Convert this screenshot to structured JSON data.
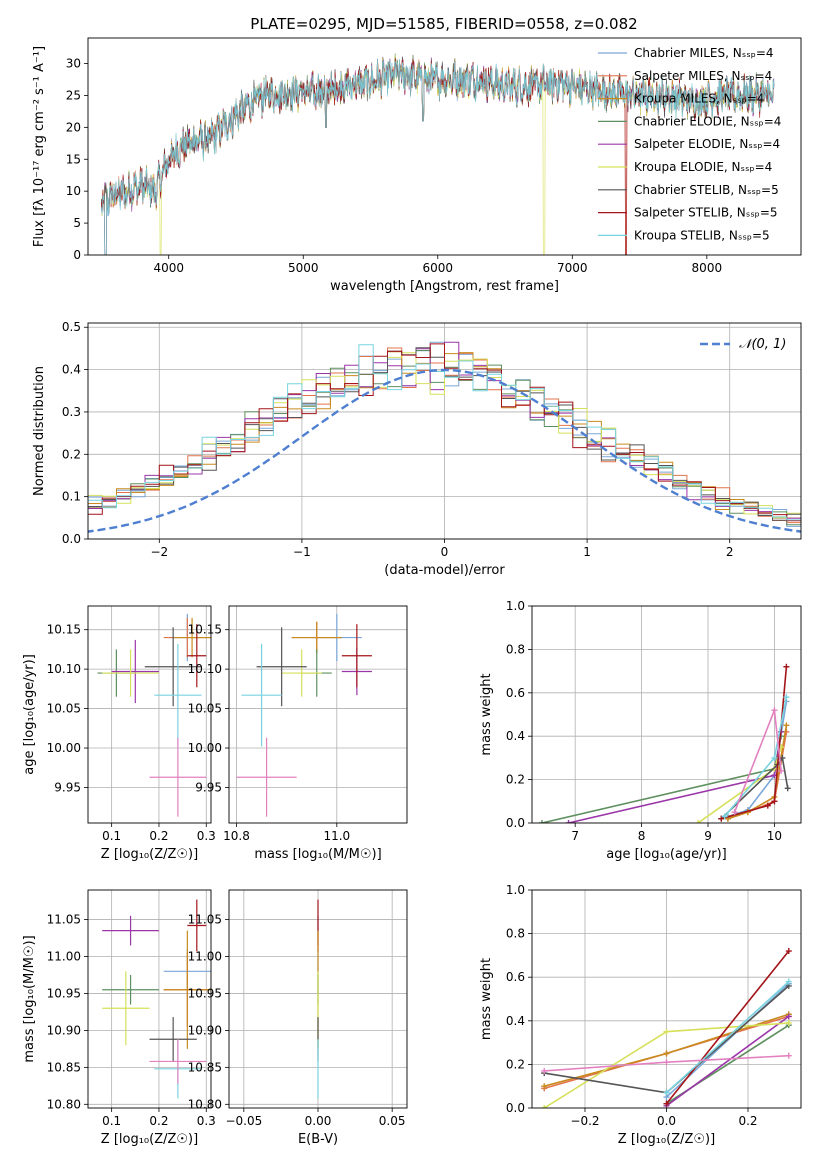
{
  "figure_title": "PLATE=0295, MJD=51585, FIBERID=0558, z=0.082",
  "colors": {
    "Chabrier MILES": "#7aa7d8",
    "Salpeter MILES": "#e2744c",
    "Kroupa MILES": "#c98a1e",
    "Chabrier ELODIE": "#5e8f5e",
    "Salpeter ELODIE": "#9b36a8",
    "Kroupa ELODIE": "#d6e05a",
    "Chabrier STELIB": "#555555",
    "Salpeter STELIB": "#a3151a",
    "Kroupa STELIB": "#78d3e0",
    "normal_curve": "#4f7fd0",
    "pink": "#e381c0"
  },
  "chart_data": [
    {
      "id": "spectrum",
      "type": "line",
      "title": "PLATE=0295, MJD=51585, FIBERID=0558, z=0.082",
      "xlabel": "wavelength [Angstrom, rest frame]",
      "ylabel": "Flux [fλ 10⁻¹⁷ erg cm⁻² s⁻¹ A⁻¹]",
      "xlim": [
        3400,
        8700
      ],
      "ylim": [
        0,
        34
      ],
      "xticks": [
        4000,
        5000,
        6000,
        7000,
        8000
      ],
      "yticks": [
        0,
        5,
        10,
        15,
        20,
        25,
        30
      ],
      "legend_position": "right",
      "legend": [
        "Chabrier MILES, N_SSP=4",
        "Salpeter MILES, N_SSP=4",
        "Kroupa MILES, N_SSP=4",
        "Chabrier ELODIE, N_SSP=4",
        "Salpeter ELODIE, N_SSP=4",
        "Kroupa ELODIE, N_SSP=4",
        "Chabrier STELIB, N_SSP=5",
        "Salpeter STELIB, N_SSP=5",
        "Kroupa STELIB, N_SSP=5"
      ],
      "continuum": {
        "x": [
          3500,
          3600,
          3700,
          3800,
          3900,
          4000,
          4100,
          4200,
          4300,
          4400,
          4500,
          4700,
          4900,
          5100,
          5300,
          5500,
          5700,
          5900,
          6100,
          6300,
          6500,
          6700,
          6900,
          7100,
          7300,
          7500,
          7700,
          7900,
          8100,
          8300,
          8500
        ],
        "y": [
          8,
          9.5,
          10,
          11,
          10,
          15,
          17,
          18,
          18,
          20,
          22,
          25,
          25.5,
          25.5,
          26.5,
          27,
          28.5,
          27.5,
          27.5,
          27.5,
          26.5,
          26.5,
          27,
          26,
          25.5,
          25,
          25,
          24,
          25,
          25,
          25
        ]
      },
      "features": [
        {
          "x": 3530,
          "y": 0
        },
        {
          "x": 3940,
          "y": 0
        },
        {
          "x": 5170,
          "y": 20
        },
        {
          "x": 5890,
          "y": 21
        },
        {
          "x": 6790,
          "y": 0
        },
        {
          "x": 7400,
          "y": 0
        }
      ]
    },
    {
      "id": "residuals",
      "type": "histogram",
      "xlabel": "(data-model)/error",
      "ylabel": "Normed distribution",
      "xlim": [
        -2.5,
        2.5
      ],
      "ylim": [
        0,
        0.51
      ],
      "xticks": [
        -2,
        -1,
        0,
        1,
        2
      ],
      "yticks": [
        0,
        0.1,
        0.2,
        0.3,
        0.4,
        0.5
      ],
      "grid": true,
      "legend_position": "top-right",
      "legend": [
        "𝒩(0, 1)"
      ],
      "bin_width": 0.1,
      "mean_density": [
        0.017,
        0.02,
        0.025,
        0.03,
        0.035,
        0.04,
        0.046,
        0.052,
        0.06,
        0.068,
        0.079,
        0.09,
        0.103,
        0.116,
        0.131,
        0.147,
        0.164,
        0.182,
        0.2,
        0.219,
        0.238,
        0.258,
        0.277,
        0.297,
        0.315,
        0.333,
        0.35,
        0.365,
        0.379,
        0.39,
        0.399,
        0.405,
        0.409,
        0.41,
        0.407,
        0.401,
        0.392,
        0.382,
        0.369,
        0.354,
        0.338,
        0.321,
        0.302,
        0.283,
        0.264,
        0.244,
        0.225,
        0.206,
        0.187,
        0.169,
        0.152,
        0.136,
        0.121,
        0.107,
        0.094,
        0.082,
        0.072,
        0.063,
        0.054,
        0.047,
        0.04,
        0.035,
        0.03,
        0.026,
        0.022,
        0.019,
        0.017,
        0.015,
        0.013,
        0.012
      ]
    },
    {
      "id": "age-vs-Z",
      "type": "errorbar",
      "xlabel": "Z [log₁₀(Z/Z☉)]",
      "ylabel": "age  [log₁₀(age/yr)]",
      "xlim": [
        0.05,
        0.31
      ],
      "ylim": [
        9.905,
        10.18
      ],
      "xticks": [
        0.1,
        0.2,
        0.3
      ],
      "yticks": [
        9.95,
        10.0,
        10.05,
        10.1,
        10.15
      ],
      "points": [
        {
          "series": "Chabrier MILES",
          "x": 0.26,
          "y": 10.14,
          "xerr": 0.04,
          "yerr": 0.03
        },
        {
          "series": "Salpeter MILES",
          "x": 0.26,
          "y": 10.14,
          "xerr": 0.05,
          "yerr": 0.025
        },
        {
          "series": "Kroupa MILES",
          "x": 0.27,
          "y": 10.14,
          "xerr": 0.04,
          "yerr": 0.025
        },
        {
          "series": "Chabrier ELODIE",
          "x": 0.11,
          "y": 10.095,
          "xerr": 0.04,
          "yerr": 0.03
        },
        {
          "series": "Salpeter ELODIE",
          "x": 0.15,
          "y": 10.097,
          "xerr": 0.05,
          "yerr": 0.04
        },
        {
          "series": "Kroupa ELODIE",
          "x": 0.14,
          "y": 10.095,
          "xerr": 0.06,
          "yerr": 0.03
        },
        {
          "series": "Chabrier STELIB",
          "x": 0.23,
          "y": 10.103,
          "xerr": 0.06,
          "yerr": 0.05
        },
        {
          "series": "Salpeter STELIB",
          "x": 0.28,
          "y": 10.117,
          "xerr": 0.02,
          "yerr": 0.04
        },
        {
          "series": "Kroupa STELIB",
          "x": 0.24,
          "y": 10.067,
          "xerr": 0.05,
          "yerr": 0.065
        },
        {
          "series": "pink",
          "x": 0.24,
          "y": 9.963,
          "xerr": 0.06,
          "yerr": 0.05
        }
      ]
    },
    {
      "id": "age-vs-mass",
      "type": "errorbar",
      "xlabel": "mass [log₁₀(M/M☉)]",
      "ylabel": "",
      "xlim": [
        10.785,
        11.14
      ],
      "ylim": [
        9.905,
        10.18
      ],
      "xticks": [
        10.8,
        11.0
      ],
      "yticks": [
        9.95,
        10.0,
        10.05,
        10.1,
        10.15
      ],
      "points": [
        {
          "series": "Chabrier MILES",
          "x": 11.0,
          "y": 10.14,
          "xerr": 0.05,
          "yerr": 0.03
        },
        {
          "series": "Salpeter MILES",
          "x": 10.96,
          "y": 10.14,
          "xerr": 0.05,
          "yerr": 0.02
        },
        {
          "series": "Kroupa MILES",
          "x": 10.96,
          "y": 10.14,
          "xerr": 0.05,
          "yerr": 0.02
        },
        {
          "series": "Chabrier ELODIE",
          "x": 10.96,
          "y": 10.095,
          "xerr": 0.03,
          "yerr": 0.03
        },
        {
          "series": "Salpeter ELODIE",
          "x": 11.04,
          "y": 10.097,
          "xerr": 0.03,
          "yerr": 0.03
        },
        {
          "series": "Kroupa ELODIE",
          "x": 10.93,
          "y": 10.095,
          "xerr": 0.04,
          "yerr": 0.03
        },
        {
          "series": "Chabrier STELIB",
          "x": 10.89,
          "y": 10.103,
          "xerr": 0.05,
          "yerr": 0.05
        },
        {
          "series": "Salpeter STELIB",
          "x": 11.04,
          "y": 10.117,
          "xerr": 0.03,
          "yerr": 0.04
        },
        {
          "series": "Kroupa STELIB",
          "x": 10.85,
          "y": 10.067,
          "xerr": 0.04,
          "yerr": 0.065
        },
        {
          "series": "pink",
          "x": 10.86,
          "y": 9.963,
          "xerr": 0.06,
          "yerr": 0.05
        }
      ]
    },
    {
      "id": "mass-weight-vs-age",
      "type": "line",
      "xlabel": "age  [log₁₀(age/yr)]",
      "ylabel": "mass weight",
      "xlim": [
        6.35,
        10.4
      ],
      "ylim": [
        0,
        1
      ],
      "xticks": [
        7,
        8,
        9,
        10
      ],
      "yticks": [
        0.0,
        0.2,
        0.4,
        0.6,
        0.8,
        1.0
      ],
      "grid": true,
      "series": [
        {
          "name": "Chabrier MILES",
          "x": [
            9.3,
            9.6,
            10.0,
            10.18
          ],
          "y": [
            0.03,
            0.06,
            0.22,
            0.56
          ]
        },
        {
          "name": "Salpeter MILES",
          "x": [
            9.3,
            9.6,
            10.0,
            10.18
          ],
          "y": [
            0.02,
            0.05,
            0.1,
            0.42
          ]
        },
        {
          "name": "Kroupa MILES",
          "x": [
            9.3,
            9.6,
            10.0,
            10.18
          ],
          "y": [
            0.02,
            0.05,
            0.12,
            0.45
          ]
        },
        {
          "name": "Chabrier ELODIE",
          "x": [
            6.5,
            10.0,
            10.1
          ],
          "y": [
            0.0,
            0.25,
            0.4
          ]
        },
        {
          "name": "Salpeter ELODIE",
          "x": [
            6.9,
            10.0,
            10.1
          ],
          "y": [
            0.0,
            0.22,
            0.42
          ]
        },
        {
          "name": "Kroupa ELODIE",
          "x": [
            8.85,
            10.0,
            10.1
          ],
          "y": [
            0.0,
            0.25,
            0.35
          ]
        },
        {
          "name": "Chabrier STELIB",
          "x": [
            9.2,
            10.05,
            10.12,
            10.2
          ],
          "y": [
            0.02,
            0.27,
            0.3,
            0.16
          ]
        },
        {
          "name": "Salpeter STELIB",
          "x": [
            9.2,
            9.9,
            10.0,
            10.18
          ],
          "y": [
            0.02,
            0.08,
            0.1,
            0.72
          ]
        },
        {
          "name": "Kroupa STELIB",
          "x": [
            9.25,
            10.0,
            10.18
          ],
          "y": [
            0.03,
            0.3,
            0.58
          ]
        },
        {
          "name": "pink",
          "x": [
            9.4,
            10.0,
            10.1
          ],
          "y": [
            0.05,
            0.52,
            0.24
          ]
        }
      ]
    },
    {
      "id": "mass-vs-Z",
      "type": "errorbar",
      "xlabel": "Z [log₁₀(Z/Z☉)]",
      "ylabel": "mass [log₁₀(M/M☉)]",
      "xlim": [
        0.05,
        0.31
      ],
      "ylim": [
        10.795,
        11.09
      ],
      "xticks": [
        0.1,
        0.2,
        0.3
      ],
      "yticks": [
        10.8,
        10.85,
        10.9,
        10.95,
        11.0,
        11.05
      ],
      "points": [
        {
          "series": "Chabrier MILES",
          "x": 0.26,
          "y": 10.98,
          "xerr": 0.05,
          "yerr": 0.03
        },
        {
          "series": "Salpeter MILES",
          "x": 0.26,
          "y": 10.955,
          "xerr": 0.05,
          "yerr": 0.05
        },
        {
          "series": "Kroupa MILES",
          "x": 0.26,
          "y": 10.955,
          "xerr": 0.05,
          "yerr": 0.08
        },
        {
          "series": "Chabrier ELODIE",
          "x": 0.14,
          "y": 10.955,
          "xerr": 0.06,
          "yerr": 0.02
        },
        {
          "series": "Salpeter ELODIE",
          "x": 0.14,
          "y": 11.035,
          "xerr": 0.06,
          "yerr": 0.02
        },
        {
          "series": "Kroupa ELODIE",
          "x": 0.13,
          "y": 10.93,
          "xerr": 0.05,
          "yerr": 0.05
        },
        {
          "series": "Chabrier STELIB",
          "x": 0.23,
          "y": 10.888,
          "xerr": 0.05,
          "yerr": 0.03
        },
        {
          "series": "Salpeter STELIB",
          "x": 0.28,
          "y": 11.042,
          "xerr": 0.02,
          "yerr": 0.035
        },
        {
          "series": "Kroupa STELIB",
          "x": 0.24,
          "y": 10.848,
          "xerr": 0.05,
          "yerr": 0.04
        },
        {
          "series": "pink",
          "x": 0.24,
          "y": 10.858,
          "xerr": 0.06,
          "yerr": 0.03
        }
      ]
    },
    {
      "id": "mass-vs-ebv",
      "type": "errorbar",
      "xlabel": "E(B-V)",
      "ylabel": "",
      "xlim": [
        -0.06,
        0.06
      ],
      "ylim": [
        10.795,
        11.09
      ],
      "xticks": [
        -0.05,
        0.0,
        0.05
      ],
      "yticks": [
        10.8,
        10.85,
        10.9,
        10.95,
        11.0,
        11.05
      ],
      "points": [
        {
          "series": "Chabrier MILES",
          "x": 0.0,
          "y": 10.98,
          "xerr": 0.0,
          "yerr": 0.03
        },
        {
          "series": "Salpeter ELODIE",
          "x": 0.0,
          "y": 11.035,
          "xerr": 0.0,
          "yerr": 0.02
        },
        {
          "series": "Salpeter STELIB",
          "x": 0.0,
          "y": 11.042,
          "xerr": 0.0,
          "yerr": 0.035
        },
        {
          "series": "Kroupa MILES",
          "x": 0.0,
          "y": 10.955,
          "xerr": 0.0,
          "yerr": 0.08
        },
        {
          "series": "Chabrier ELODIE",
          "x": 0.0,
          "y": 10.955,
          "xerr": 0.0,
          "yerr": 0.02
        },
        {
          "series": "Kroupa ELODIE",
          "x": 0.0,
          "y": 10.93,
          "xerr": 0.0,
          "yerr": 0.05
        },
        {
          "series": "Chabrier STELIB",
          "x": 0.0,
          "y": 10.888,
          "xerr": 0.0,
          "yerr": 0.03
        },
        {
          "series": "Kroupa STELIB",
          "x": 0.0,
          "y": 10.848,
          "xerr": 0.0,
          "yerr": 0.04
        }
      ]
    },
    {
      "id": "mass-weight-vs-Z",
      "type": "line",
      "xlabel": "Z [log₁₀(Z/Z☉)]",
      "ylabel": "mass weight",
      "xlim": [
        -0.33,
        0.33
      ],
      "ylim": [
        0,
        1
      ],
      "xticks": [
        -0.2,
        0.0,
        0.2
      ],
      "yticks": [
        0.0,
        0.2,
        0.4,
        0.6,
        0.8,
        1.0
      ],
      "grid": true,
      "series": [
        {
          "name": "Chabrier MILES",
          "x": [
            0.0,
            0.3
          ],
          "y": [
            0.05,
            0.57
          ]
        },
        {
          "name": "Salpeter MILES",
          "x": [
            -0.3,
            0.0,
            0.3
          ],
          "y": [
            0.09,
            0.25,
            0.42
          ]
        },
        {
          "name": "Kroupa MILES",
          "x": [
            -0.3,
            0.0,
            0.3
          ],
          "y": [
            0.1,
            0.25,
            0.43
          ]
        },
        {
          "name": "Chabrier ELODIE",
          "x": [
            0.0,
            0.3
          ],
          "y": [
            0.02,
            0.38
          ]
        },
        {
          "name": "Salpeter ELODIE",
          "x": [
            0.0,
            0.3
          ],
          "y": [
            0.01,
            0.42
          ]
        },
        {
          "name": "Kroupa ELODIE",
          "x": [
            -0.3,
            0.0,
            0.3
          ],
          "y": [
            0.0,
            0.35,
            0.39
          ]
        },
        {
          "name": "Chabrier STELIB",
          "x": [
            -0.3,
            0.0,
            0.3
          ],
          "y": [
            0.16,
            0.07,
            0.56
          ]
        },
        {
          "name": "Salpeter STELIB",
          "x": [
            0.0,
            0.3
          ],
          "y": [
            0.02,
            0.72
          ]
        },
        {
          "name": "Kroupa STELIB",
          "x": [
            0.0,
            0.3
          ],
          "y": [
            0.07,
            0.58
          ]
        },
        {
          "name": "pink",
          "x": [
            -0.3,
            0.0,
            0.3
          ],
          "y": [
            0.17,
            0.21,
            0.24
          ]
        }
      ]
    }
  ]
}
